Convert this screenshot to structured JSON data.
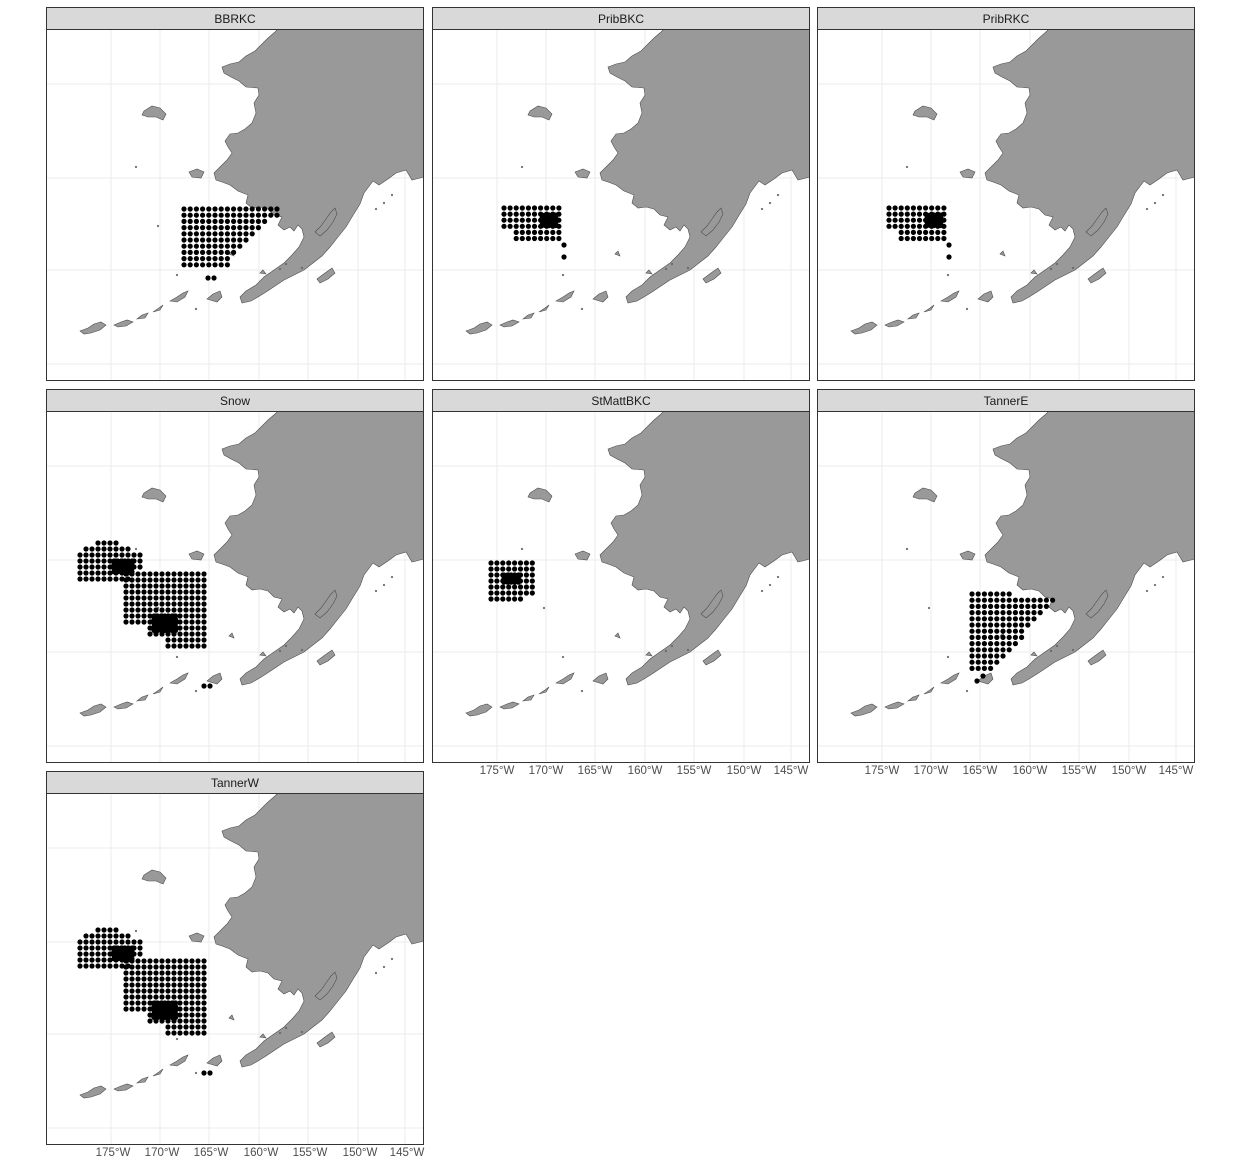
{
  "map_panels": [
    {
      "label": "BBRKC",
      "show_x_axis": false
    },
    {
      "label": "PribBKC",
      "show_x_axis": false
    },
    {
      "label": "PribRKC",
      "show_x_axis": false
    },
    {
      "label": "Snow",
      "show_x_axis": false
    },
    {
      "label": "StMattBKC",
      "show_x_axis": true
    },
    {
      "label": "TannerE",
      "show_x_axis": true
    },
    {
      "label": "TannerW",
      "show_x_axis": true
    }
  ],
  "x_axis": {
    "ticks": [
      "175°W",
      "170°W",
      "165°W",
      "160°W",
      "155°W",
      "150°W",
      "145°W"
    ]
  },
  "colors": {
    "land": "#999999",
    "coast": "#4d4d4d",
    "points": "#000000",
    "grid": "#ebebeb",
    "strip": "#d9d9d9",
    "border": "#333333"
  }
}
